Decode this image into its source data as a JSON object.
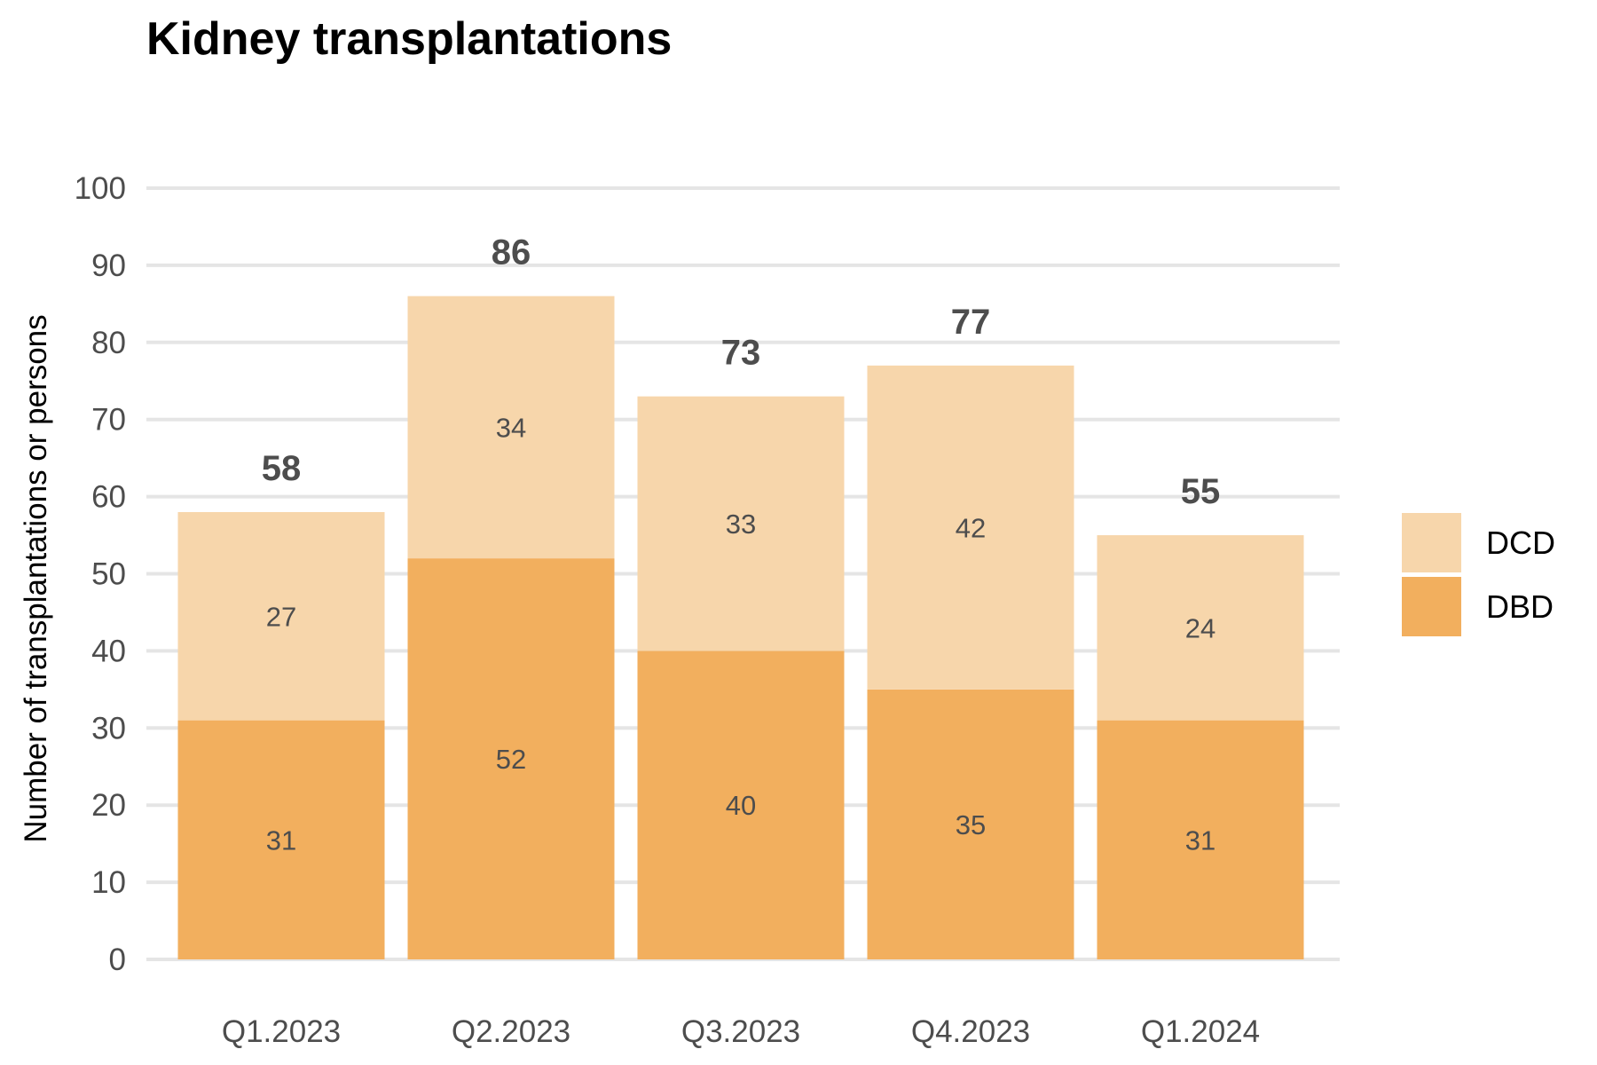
{
  "chart_data": {
    "type": "bar",
    "stacked": true,
    "title": "Kidney transplantations",
    "xlabel": "",
    "ylabel": "Number of transplantations or persons",
    "ylim": [
      0,
      100
    ],
    "yticks": [
      0,
      10,
      20,
      30,
      40,
      50,
      60,
      70,
      80,
      90,
      100
    ],
    "grid": "horizontal",
    "legend_position": "right",
    "categories": [
      "Q1.2023",
      "Q2.2023",
      "Q3.2023",
      "Q4.2023",
      "Q1.2024"
    ],
    "series": [
      {
        "name": "DBD",
        "color": "#F2AF5E",
        "values": [
          31,
          52,
          40,
          35,
          31
        ]
      },
      {
        "name": "DCD",
        "color": "#F7D6AB",
        "values": [
          27,
          34,
          33,
          42,
          24
        ]
      }
    ],
    "totals": [
      58,
      86,
      73,
      77,
      55
    ],
    "legend_order": [
      "DCD",
      "DBD"
    ],
    "gridline_color": "#E5E5E5"
  }
}
